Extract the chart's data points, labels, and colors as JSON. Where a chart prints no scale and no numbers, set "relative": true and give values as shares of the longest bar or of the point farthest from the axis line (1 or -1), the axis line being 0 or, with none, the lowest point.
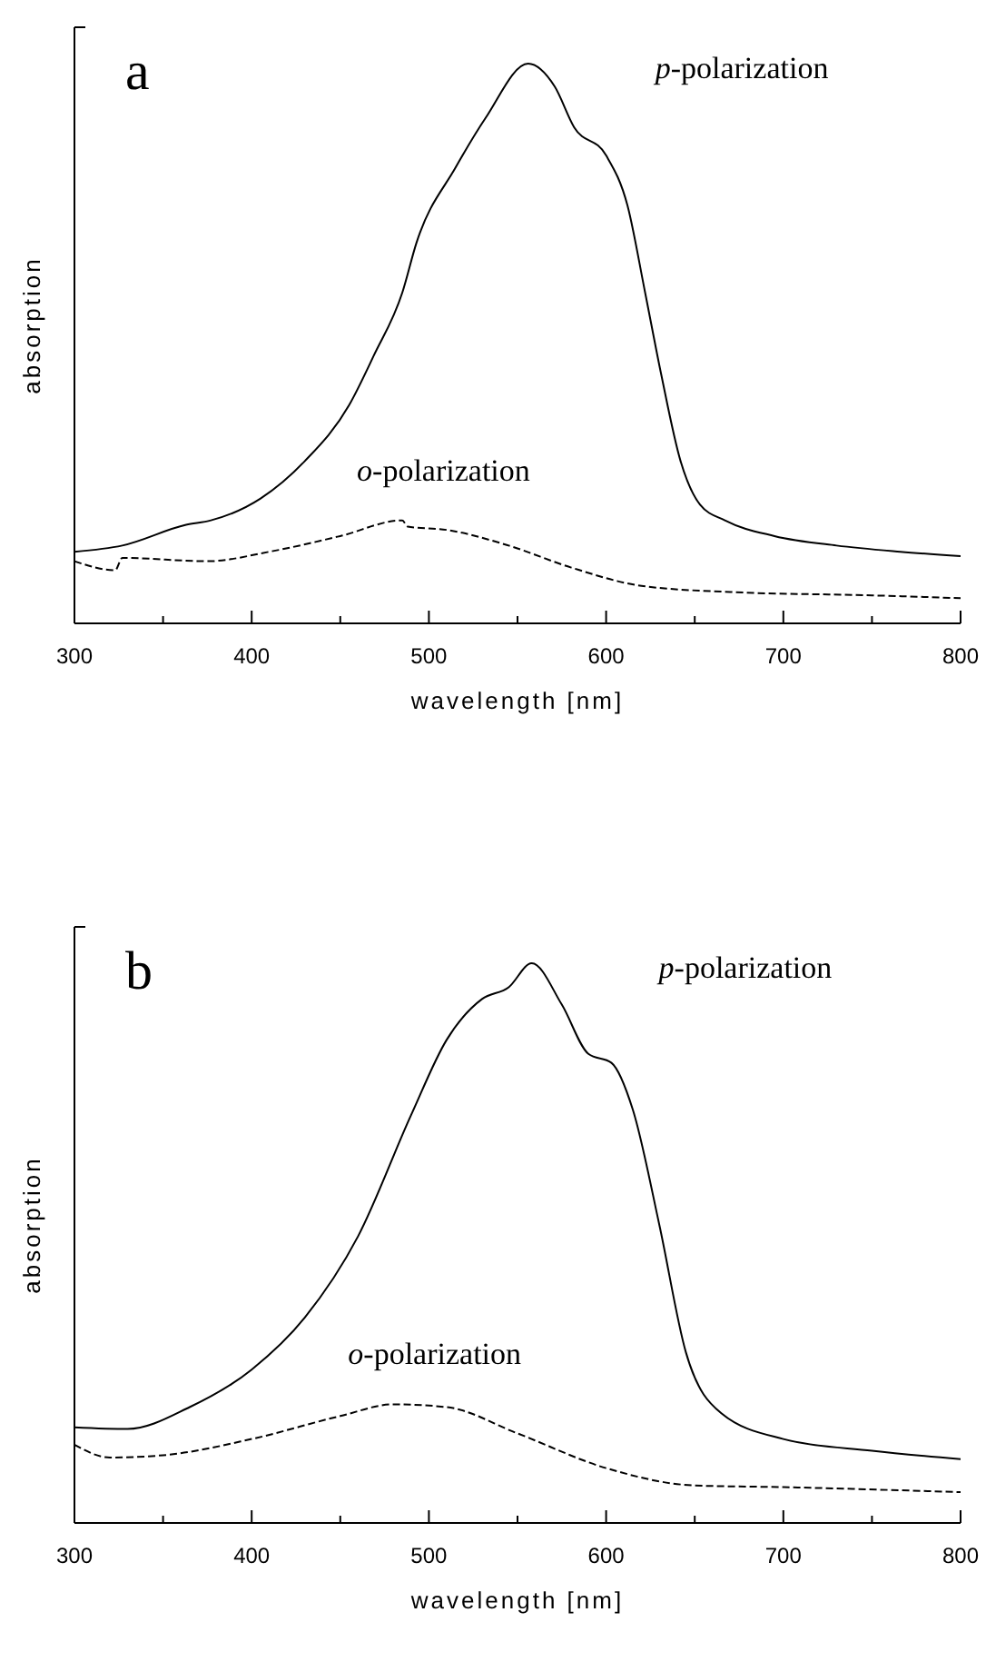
{
  "chart_data": [
    {
      "type": "line",
      "title": "a",
      "xlabel": "wavelength [nm]",
      "ylabel": "absorption",
      "relative": true,
      "xlim": [
        300,
        800
      ],
      "xticks": [
        300,
        {
          "value": 350,
          "label": null
        },
        400,
        {
          "value": 450,
          "label": null
        },
        500,
        {
          "value": 550,
          "label": null
        },
        600,
        {
          "value": 650,
          "label": null
        },
        700,
        {
          "value": 750,
          "label": null
        },
        800
      ],
      "legend": false,
      "grid": false,
      "series": [
        {
          "name": "p-polarization",
          "color": "#000000",
          "line_style": "solid",
          "x": [
            300,
            327,
            363,
            377,
            405,
            430,
            455,
            469,
            485,
            493,
            515,
            532,
            556,
            571,
            582,
            600,
            612,
            622,
            631,
            642,
            653,
            667,
            695,
            730,
            766,
            800
          ],
          "values": [
            0.128,
            0.139,
            0.176,
            0.184,
            0.223,
            0.29,
            0.39,
            0.479,
            0.591,
            0.68,
            0.814,
            0.903,
            1,
            0.959,
            0.886,
            0.836,
            0.747,
            0.591,
            0.446,
            0.29,
            0.212,
            0.184,
            0.156,
            0.139,
            0.128,
            0.12
          ]
        },
        {
          "name": "o-polarization",
          "color": "#000000",
          "line_style": "dashed",
          "x": [
            300,
            323,
            327,
            375,
            410,
            450,
            485,
            488,
            510,
            545,
            580,
            620,
            670,
            750,
            800
          ],
          "values": [
            0.111,
            0.095,
            0.117,
            0.111,
            0.128,
            0.156,
            0.184,
            0.173,
            0.167,
            0.139,
            0.1,
            0.067,
            0.056,
            0.05,
            0.045
          ]
        }
      ]
    },
    {
      "type": "line",
      "title": "b",
      "xlabel": "wavelength [nm]",
      "ylabel": "absorption",
      "relative": true,
      "xlim": [
        300,
        800
      ],
      "xticks": [
        300,
        {
          "value": 350,
          "label": null
        },
        400,
        {
          "value": 450,
          "label": null
        },
        500,
        {
          "value": 550,
          "label": null
        },
        600,
        {
          "value": 650,
          "label": null
        },
        700,
        {
          "value": 750,
          "label": null
        },
        800
      ],
      "legend": false,
      "grid": false,
      "series": [
        {
          "name": "p-polarization",
          "color": "#000000",
          "line_style": "solid",
          "x": [
            300,
            330,
            365,
            400,
            430,
            460,
            490,
            510,
            530,
            545,
            558,
            575,
            590,
            603,
            615,
            630,
            645,
            665,
            700,
            750,
            800
          ],
          "values": [
            0.171,
            0.168,
            0.207,
            0.274,
            0.367,
            0.512,
            0.729,
            0.863,
            0.936,
            0.957,
            1,
            0.926,
            0.838,
            0.822,
            0.739,
            0.533,
            0.305,
            0.196,
            0.15,
            0.129,
            0.114
          ]
        },
        {
          "name": "o-polarization",
          "color": "#000000",
          "line_style": "dashed",
          "x": [
            300,
            320,
            350,
            400,
            450,
            480,
            510,
            550,
            600,
            650,
            700,
            800
          ],
          "values": [
            0.14,
            0.117,
            0.121,
            0.15,
            0.191,
            0.212,
            0.207,
            0.16,
            0.098,
            0.067,
            0.064,
            0.055
          ]
        }
      ]
    }
  ]
}
